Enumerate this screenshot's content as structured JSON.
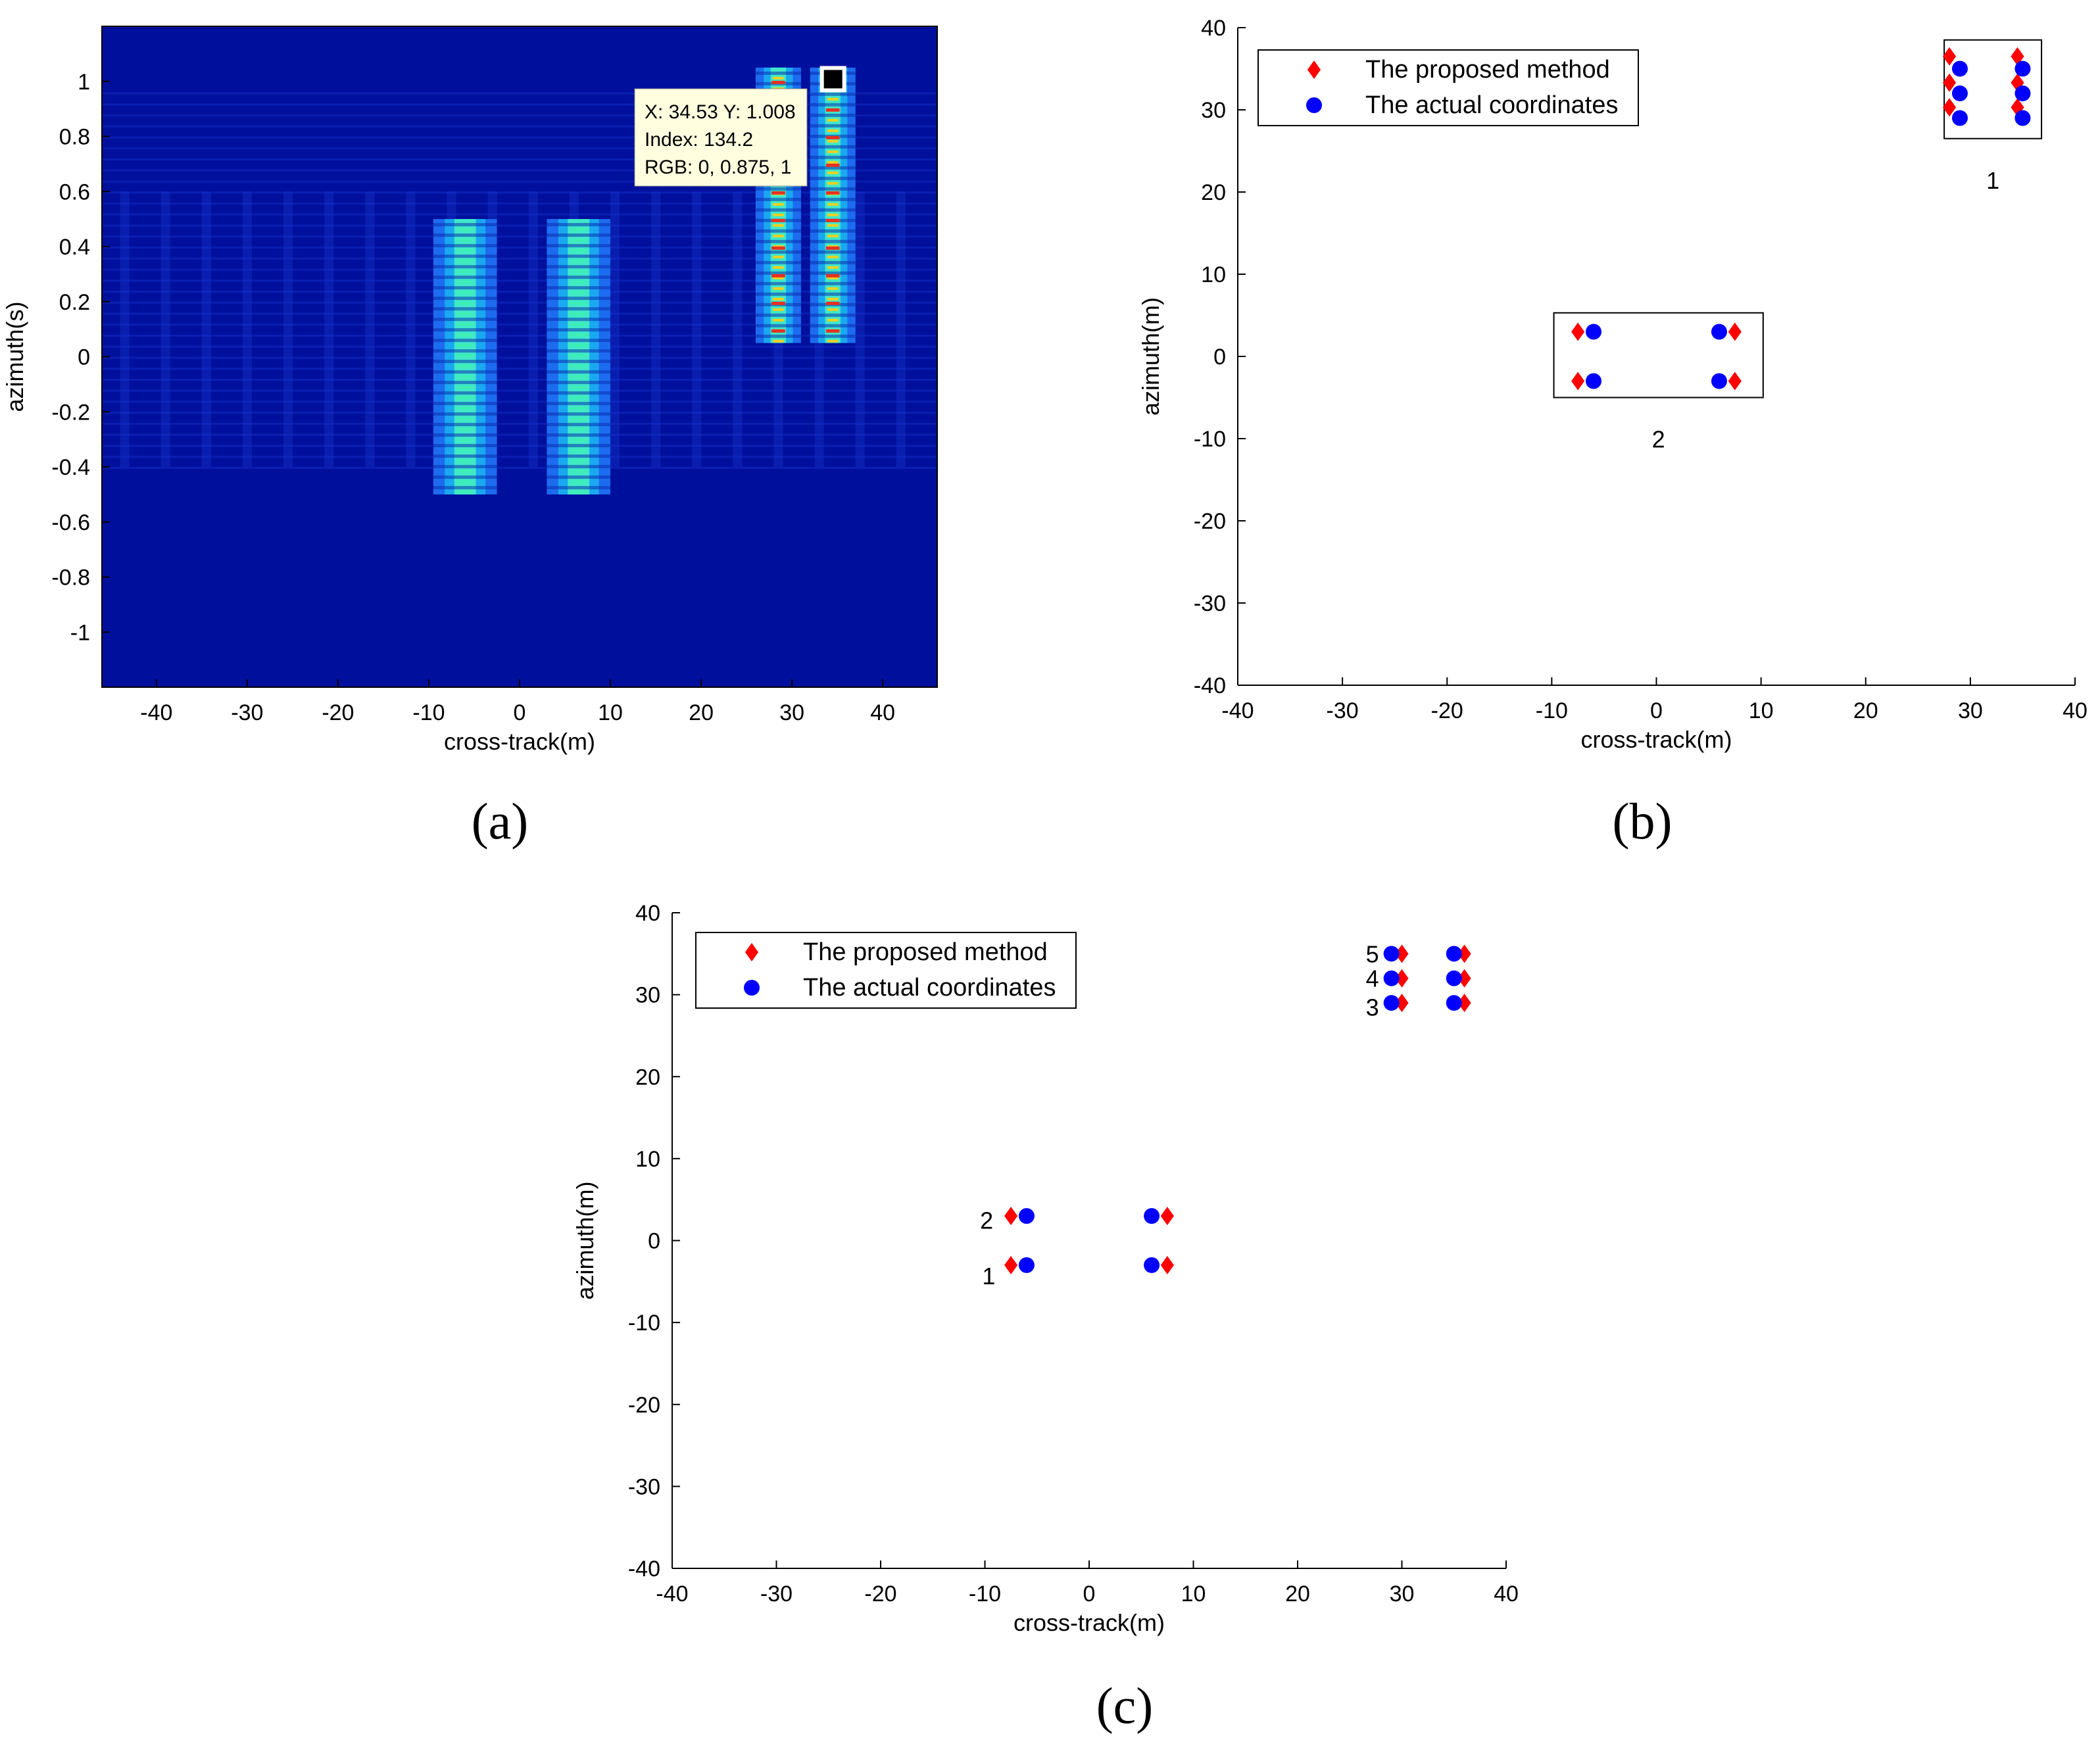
{
  "chart_data": [
    {
      "panel": "a",
      "type": "heatmap",
      "panel_label": "(a)",
      "xlabel": "cross-track(m)",
      "ylabel": "azimuth(s)",
      "xlim": [
        -46,
        46
      ],
      "ylim": [
        -1.2,
        1.2
      ],
      "xticks": [
        -40,
        -30,
        -20,
        -10,
        0,
        10,
        20,
        30,
        40
      ],
      "yticks": [
        1,
        0.8,
        0.6,
        0.4,
        0.2,
        0,
        -0.2,
        -0.4,
        -0.6,
        -0.8,
        -1
      ],
      "ytick_labels": [
        "1",
        "0.8",
        "0.6",
        "0.4",
        "0.2",
        "0",
        "-0.2",
        "-0.4",
        "-0.6",
        "-0.8",
        "-1"
      ],
      "background_color": "#00109c",
      "strips": [
        {
          "x": [
            -9.5,
            -2.5
          ],
          "y": [
            -0.5,
            0.5
          ],
          "peak": "#3cf0b4"
        },
        {
          "x": [
            3.0,
            10.0
          ],
          "y": [
            -0.5,
            0.5
          ],
          "peak": "#3cf0b4"
        },
        {
          "x": [
            26.0,
            31.0
          ],
          "y": [
            0.05,
            1.05
          ],
          "peak": "#f0d020"
        },
        {
          "x": [
            32.0,
            37.0
          ],
          "y": [
            0.05,
            1.05
          ],
          "peak": "#f0d020"
        }
      ],
      "datatip": {
        "marker": [
          34.53,
          1.008
        ],
        "line1": "X: 34.53 Y: 1.008",
        "line2": "Index: 134.2",
        "line3": "RGB: 0, 0.875, 1"
      }
    },
    {
      "panel": "b",
      "type": "scatter",
      "panel_label": "(b)",
      "xlabel": "cross-track(m)",
      "ylabel": "azimuth(m)",
      "xlim": [
        -40,
        40
      ],
      "ylim": [
        -40,
        40
      ],
      "xticks": [
        -40,
        -30,
        -20,
        -10,
        0,
        10,
        20,
        30,
        40
      ],
      "yticks": [
        -40,
        -30,
        -20,
        -10,
        0,
        10,
        20,
        30,
        40
      ],
      "legend": [
        "The proposed method",
        "The actual coordinates"
      ],
      "series": [
        {
          "name": "The proposed method",
          "marker": "diamond",
          "color": "#ff0000",
          "points": [
            [
              -7.5,
              3
            ],
            [
              7.5,
              3
            ],
            [
              -7.5,
              -3
            ],
            [
              7.5,
              -3
            ],
            [
              28,
              36.5
            ],
            [
              34.5,
              36.5
            ],
            [
              28,
              33.3
            ],
            [
              34.5,
              33.3
            ],
            [
              28,
              30.3
            ],
            [
              34.5,
              30.3
            ]
          ]
        },
        {
          "name": "The actual coordinates",
          "marker": "circle",
          "color": "#0000ff",
          "points": [
            [
              -6,
              3
            ],
            [
              6,
              3
            ],
            [
              -6,
              -3
            ],
            [
              6,
              -3
            ],
            [
              29,
              35
            ],
            [
              35,
              35
            ],
            [
              29,
              32
            ],
            [
              35,
              32
            ],
            [
              29,
              29
            ],
            [
              35,
              29
            ]
          ]
        }
      ],
      "boxes": [
        {
          "label": "1",
          "x": [
            27.5,
            36.8
          ],
          "y": [
            26.5,
            38.5
          ]
        },
        {
          "label": "2",
          "x": [
            -9.8,
            10.2
          ],
          "y": [
            -5,
            5.3
          ]
        }
      ]
    },
    {
      "panel": "c",
      "type": "scatter",
      "panel_label": "(c)",
      "xlabel": "cross-track(m)",
      "ylabel": "azimuth(m)",
      "xlim": [
        -40,
        40
      ],
      "ylim": [
        -40,
        40
      ],
      "xticks": [
        -40,
        -30,
        -20,
        -10,
        0,
        10,
        20,
        30,
        40
      ],
      "yticks": [
        -40,
        -30,
        -20,
        -10,
        0,
        10,
        20,
        30,
        40
      ],
      "legend": [
        "The proposed method",
        "The actual coordinates"
      ],
      "series": [
        {
          "name": "The proposed method",
          "marker": "diamond",
          "color": "#ff0000",
          "points": [
            [
              -7.5,
              3
            ],
            [
              7.5,
              3
            ],
            [
              -7.5,
              -3
            ],
            [
              7.5,
              -3
            ],
            [
              30,
              35
            ],
            [
              36,
              35
            ],
            [
              30,
              32
            ],
            [
              36,
              32
            ],
            [
              30,
              29
            ],
            [
              36,
              29
            ]
          ]
        },
        {
          "name": "The actual coordinates",
          "marker": "circle",
          "color": "#0000ff",
          "points": [
            [
              -6,
              3
            ],
            [
              6,
              3
            ],
            [
              -6,
              -3
            ],
            [
              6,
              -3
            ],
            [
              29,
              35
            ],
            [
              35,
              35
            ],
            [
              29,
              32
            ],
            [
              35,
              32
            ],
            [
              29,
              29
            ],
            [
              35,
              29
            ]
          ]
        }
      ],
      "annotations": [
        {
          "text": "5",
          "x": 27.8,
          "y": 35
        },
        {
          "text": "4",
          "x": 27.8,
          "y": 32
        },
        {
          "text": "3",
          "x": 27.8,
          "y": 28.5
        },
        {
          "text": "2",
          "x": -9.2,
          "y": 2.5
        },
        {
          "text": "1",
          "x": -9.0,
          "y": -4.3
        }
      ]
    }
  ]
}
